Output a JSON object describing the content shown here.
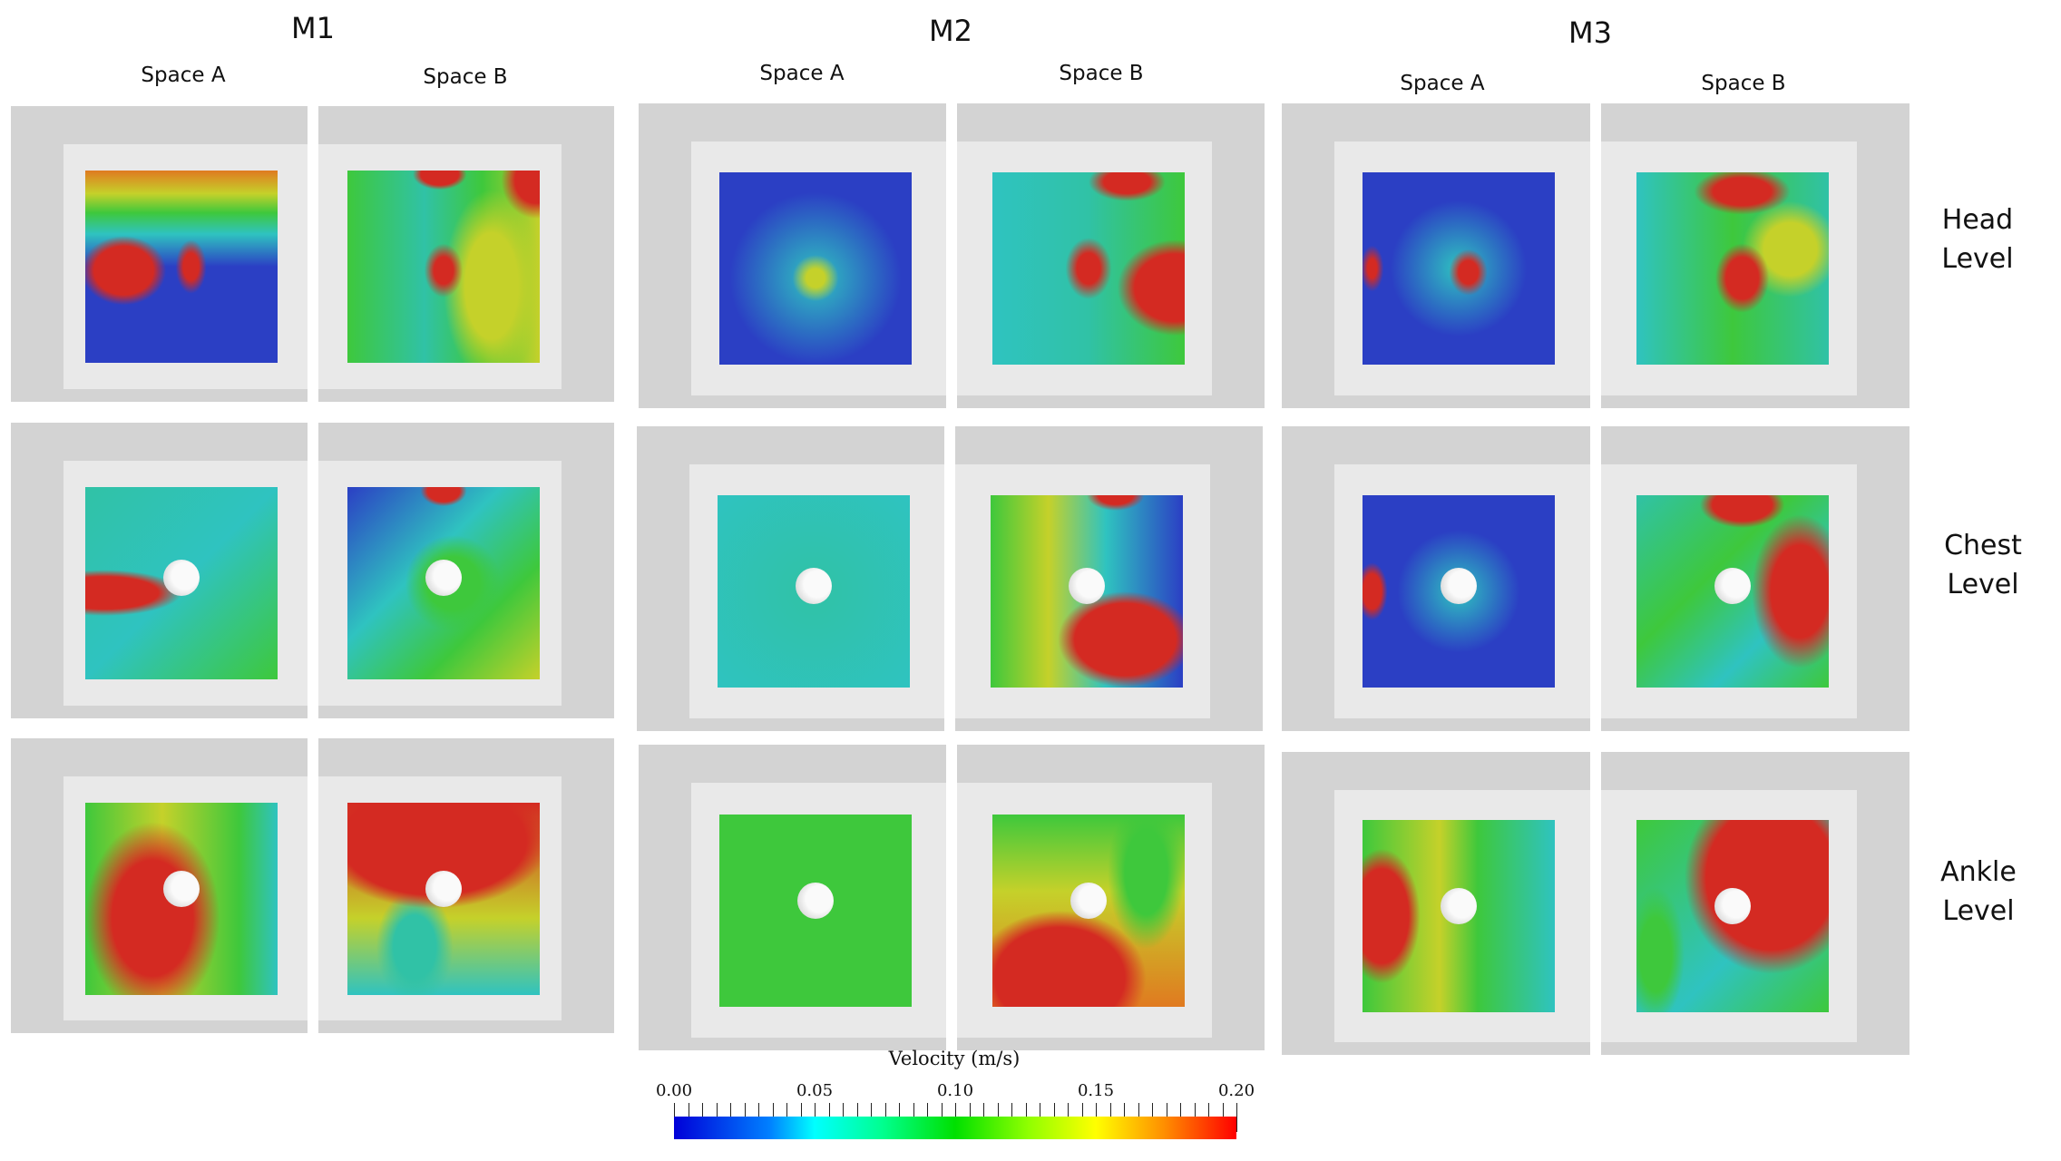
{
  "columns": [
    {
      "title": "M1",
      "spaces": [
        "Space A",
        "Space B"
      ]
    },
    {
      "title": "M2",
      "spaces": [
        "Space A",
        "Space B"
      ]
    },
    {
      "title": "M3",
      "spaces": [
        "Space A",
        "Space B"
      ]
    }
  ],
  "rows": [
    {
      "label_line1": "Head",
      "label_line2": "Level"
    },
    {
      "label_line1": "Chest",
      "label_line2": "Level"
    },
    {
      "label_line1": "Ankle",
      "label_line2": "Level"
    }
  ],
  "colorbar": {
    "title": "Velocity (m/s)",
    "min": 0.0,
    "max": 0.2,
    "tick_labels": [
      "0.00",
      "0.05",
      "0.10",
      "0.15",
      "0.20"
    ],
    "colormap": [
      "#0000d8",
      "#00ffff",
      "#00e000",
      "#ffff00",
      "#ff0000"
    ]
  }
}
